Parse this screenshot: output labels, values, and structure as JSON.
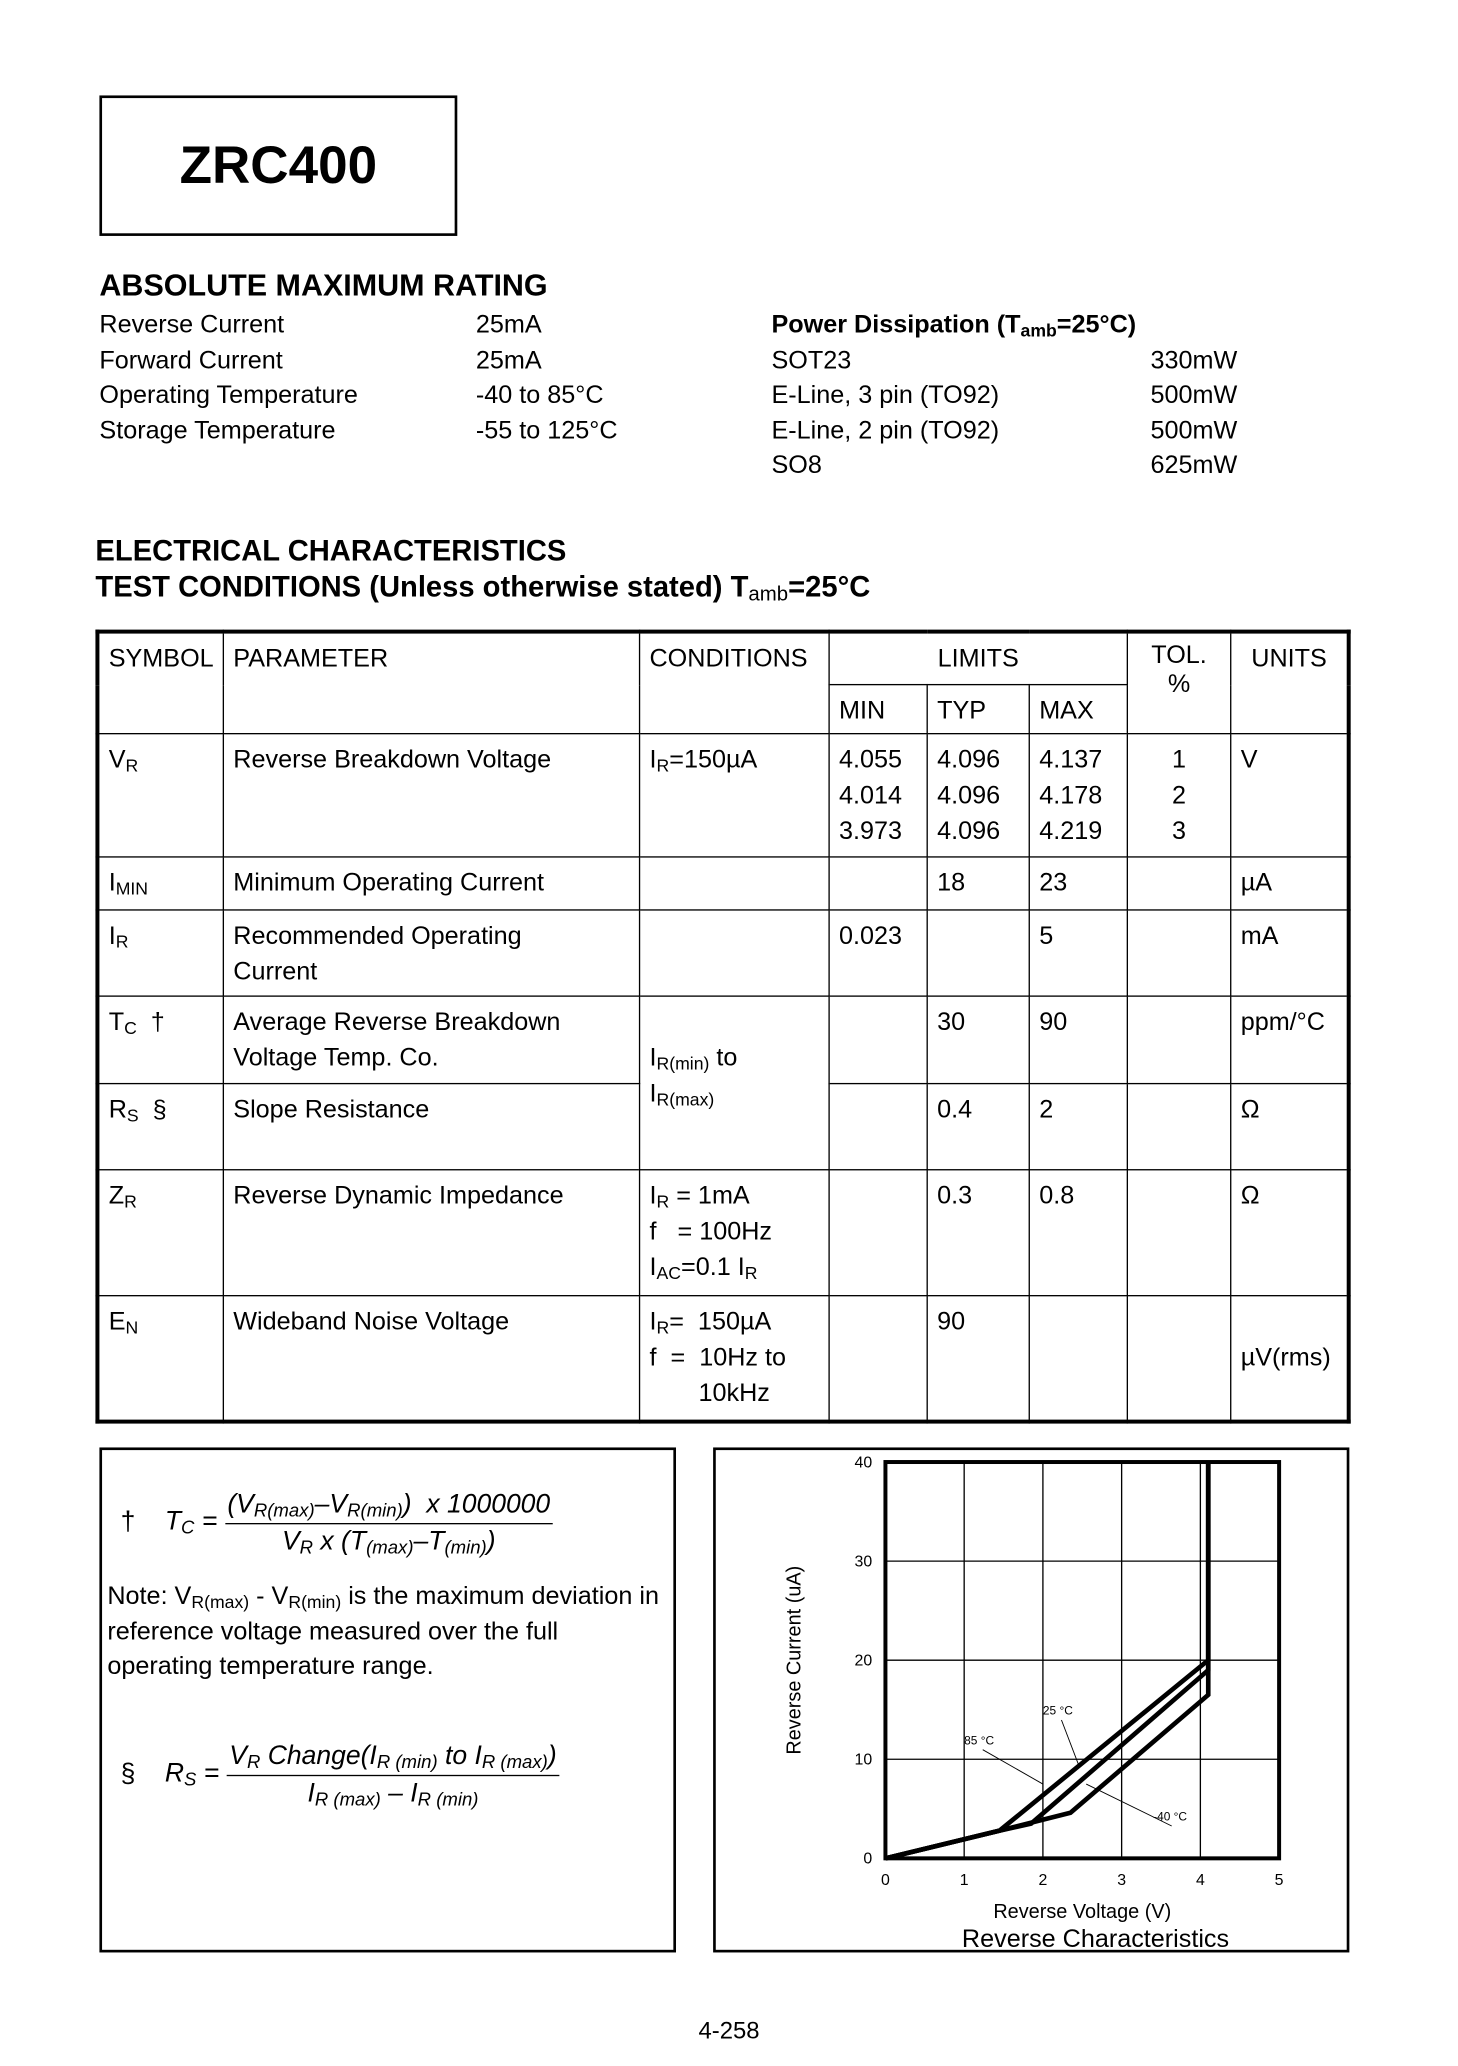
{
  "title": "ZRC400",
  "abs_max": {
    "heading": "ABSOLUTE MAXIMUM RATING",
    "rows": [
      {
        "label": "Reverse Current",
        "value": "25mA"
      },
      {
        "label": "Forward Current",
        "value": "25mA"
      },
      {
        "label": "Operating Temperature",
        "value": "-40 to 85°C"
      },
      {
        "label": "Storage Temperature",
        "value": "-55 to 125°C"
      }
    ],
    "power_heading": "Power Dissipation (T",
    "power_heading_sub": "amb",
    "power_heading_tail": "=25°C)",
    "power_rows": [
      {
        "label": "SOT23",
        "value": "330mW"
      },
      {
        "label": "E-Line, 3 pin (TO92)",
        "value": "500mW"
      },
      {
        "label": "E-Line, 2 pin (TO92)",
        "value": "500mW"
      },
      {
        "label": "SO8",
        "value": "625mW"
      }
    ]
  },
  "elec": {
    "heading1": "ELECTRICAL CHARACTERISTICS",
    "heading2": "TEST CONDITIONS (Unless otherwise stated) T",
    "heading2_sub": "amb",
    "heading2_tail": "=25°C",
    "headers": {
      "symbol": "SYMBOL",
      "parameter": "PARAMETER",
      "conditions": "CONDITIONS",
      "limits": "LIMITS",
      "min": "MIN",
      "typ": "TYP",
      "max": "MAX",
      "tol": "TOL.",
      "tol_unit": "%",
      "units": "UNITS"
    },
    "rows": [
      {
        "sym": "V",
        "sub": "R",
        "mark": "",
        "param": "Reverse Breakdown Voltage",
        "cond": "I<sub>R</sub>=150µA",
        "min": "4.055<br>4.014<br>3.973",
        "typ": "4.096<br>4.096<br>4.096",
        "max": "4.137<br>4.178<br>4.219",
        "tol": "1<br>2<br>3",
        "units": "V"
      },
      {
        "sym": "I",
        "sub": "MIN",
        "mark": "",
        "param": "Minimum Operating Current",
        "cond": "",
        "min": "",
        "typ": "18",
        "max": "23",
        "tol": "",
        "units": "µA"
      },
      {
        "sym": "I",
        "sub": "R",
        "mark": "",
        "param": "Recommended Operating<br>Current",
        "cond": "",
        "min": "0.023",
        "typ": "",
        "max": "5",
        "tol": "",
        "units": "mA"
      },
      {
        "sym": "T",
        "sub": "C",
        "mark": "†",
        "param": "Average Reverse Breakdown<br>Voltage  Temp. Co.",
        "cond": "<br>I<sub>R(min)</sub> to<br>I<sub>R(max)</sub>",
        "min": "",
        "typ": "30",
        "max": "90",
        "tol": "",
        "units": "ppm/°C"
      },
      {
        "sym": "R",
        "sub": "S",
        "mark": "§",
        "param": "Slope Resistance",
        "min": "",
        "typ": "0.4",
        "max": "2",
        "tol": "",
        "units": "Ω"
      },
      {
        "sym": "Z",
        "sub": "R",
        "mark": "",
        "param": "Reverse Dynamic Impedance",
        "cond": "I<sub>R</sub> = 1mA<br>f &nbsp;&nbsp;= 100Hz<br>I<sub>AC</sub>=0.1 I<sub>R</sub>",
        "min": "",
        "typ": "0.3",
        "max": "0.8",
        "tol": "",
        "units": "Ω"
      },
      {
        "sym": "E",
        "sub": "N",
        "mark": "",
        "param": "Wideband Noise Voltage",
        "cond": "I<sub>R</sub>= &nbsp;150µA<br>f &nbsp;= &nbsp;10Hz to<br>&nbsp;&nbsp;&nbsp;&nbsp;&nbsp;&nbsp;&nbsp;10kHz",
        "min": "",
        "typ": "90",
        "max": "",
        "tol": "",
        "units": "<br>µV(rms)"
      }
    ]
  },
  "notes": {
    "tc_mark": "†",
    "tc_lhs": "T<sub>C</sub> =",
    "tc_num": "(V<sub>R(max)</sub>–V<sub>R(min)</sub>) &nbsp;x 1000000",
    "tc_den": "V<sub>R</sub> x (T<sub>(max)</sub>–T<sub>(min)</sub>)",
    "note": "Note: V<sub>R(max)</sub> - V<sub>R(min)</sub> is the maximum deviation in reference voltage measured over the full operating temperature range.",
    "rs_mark": "§",
    "rs_lhs": "R<sub>S</sub> =",
    "rs_num": "V<sub>R</sub> Change(I<sub>R (min)</sub> to I<sub>R (max)</sub>)",
    "rs_den": "I<sub>R (max)</sub> – I<sub>R (min)</sub>"
  },
  "chart_data": {
    "type": "line",
    "title": "Reverse Characteristics",
    "xlabel": "Reverse Voltage (V)",
    "ylabel": "Reverse Current (uA)",
    "xlim": [
      0,
      5
    ],
    "ylim": [
      0,
      40
    ],
    "xticks": [
      0,
      1,
      2,
      3,
      4,
      5
    ],
    "yticks": [
      0,
      10,
      20,
      30,
      40
    ],
    "grid": true,
    "series": [
      {
        "name": "85 °C",
        "x": [
          0,
          1.45,
          4.1,
          4.1
        ],
        "y": [
          0,
          2.8,
          20,
          40
        ]
      },
      {
        "name": "25 °C",
        "x": [
          0,
          1.45,
          1.85,
          4.1,
          4.1
        ],
        "y": [
          0,
          2.8,
          3.5,
          19,
          40
        ]
      },
      {
        "name": "-40 °C",
        "x": [
          0,
          1.45,
          2.35,
          4.1,
          4.1
        ],
        "y": [
          0,
          2.8,
          4.6,
          16.5,
          40
        ]
      }
    ],
    "annotations": [
      {
        "text": "85 °C",
        "x": 1.0,
        "y": 11.5,
        "to": [
          2.0,
          7.5
        ]
      },
      {
        "text": "25 °C",
        "x": 2.0,
        "y": 14.5,
        "to": [
          2.45,
          9.5
        ]
      },
      {
        "text": "-40 °C",
        "x": 3.4,
        "y": 3.8,
        "to": [
          2.55,
          7.5
        ]
      }
    ]
  },
  "footer": {
    "page": "4-258"
  }
}
